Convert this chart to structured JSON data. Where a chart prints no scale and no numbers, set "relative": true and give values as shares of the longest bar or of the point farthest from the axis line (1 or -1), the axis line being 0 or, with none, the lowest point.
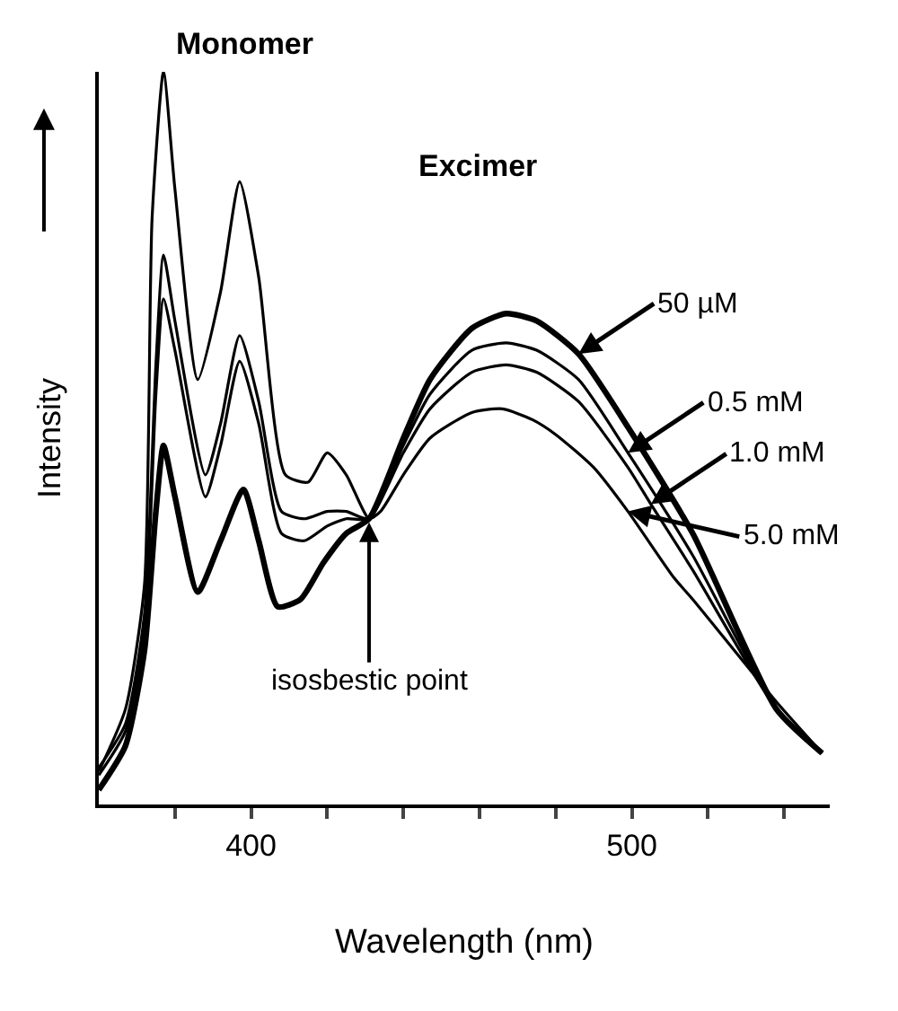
{
  "chart_data": {
    "type": "line",
    "relative": true,
    "xlabel": "Wavelength (nm)",
    "ylabel": "Intensity",
    "tick_labels": "x",
    "xlim": [
      360,
      552
    ],
    "xticks": [
      {
        "value": 380,
        "label": null
      },
      400,
      {
        "value": 420,
        "label": null
      },
      {
        "value": 440,
        "label": null
      },
      {
        "value": 460,
        "label": null
      },
      {
        "value": 480,
        "label": null
      },
      500,
      {
        "value": 520,
        "label": null
      },
      {
        "value": 540,
        "label": null
      }
    ],
    "marker": "none",
    "line_style": "solid",
    "annotations": [
      "Monomer",
      "Excimer",
      {
        "text": "isosbestic point",
        "x": 431,
        "y": 0.39
      },
      {
        "text": "50 µM",
        "x": 486,
        "y": 0.615
      },
      {
        "text": "0.5 mM",
        "x": 499,
        "y": 0.48
      },
      {
        "text": "1.0 mM",
        "x": 505,
        "y": 0.41
      },
      {
        "text": "5.0 mM",
        "x": 499,
        "y": 0.4
      }
    ],
    "series": [
      {
        "color": "#000000",
        "x": [
          360,
          367,
          372,
          375,
          377,
          380,
          386,
          392,
          398,
          402,
          407,
          413,
          419,
          425,
          431,
          440,
          447,
          458,
          467,
          475,
          486,
          499,
          516,
          538,
          550
        ],
        "values": [
          0.02,
          0.08,
          0.21,
          0.4,
          0.49,
          0.42,
          0.29,
          0.36,
          0.43,
          0.36,
          0.27,
          0.28,
          0.33,
          0.37,
          0.39,
          0.5,
          0.58,
          0.65,
          0.67,
          0.66,
          0.615,
          0.515,
          0.37,
          0.13,
          0.07
        ]
      },
      {
        "color": "#000000",
        "x": [
          360,
          367,
          372,
          375,
          377,
          380,
          388,
          392,
          397,
          402,
          408,
          414,
          420,
          425,
          431,
          440,
          447,
          458,
          467,
          475,
          486,
          499,
          516,
          538,
          550
        ],
        "values": [
          0.05,
          0.11,
          0.26,
          0.6,
          0.75,
          0.66,
          0.45,
          0.52,
          0.64,
          0.55,
          0.4,
          0.39,
          0.4,
          0.4,
          0.39,
          0.49,
          0.56,
          0.62,
          0.63,
          0.62,
          0.58,
          0.48,
          0.34,
          0.13,
          0.07
        ]
      },
      {
        "color": "#000000",
        "x": [
          360,
          367,
          372,
          375,
          377,
          380,
          388,
          392,
          397,
          402,
          408,
          414,
          420,
          425,
          431,
          440,
          447,
          458,
          467,
          475,
          486,
          499,
          505,
          516,
          538,
          550
        ],
        "values": [
          0.04,
          0.1,
          0.24,
          0.56,
          0.69,
          0.62,
          0.42,
          0.49,
          0.605,
          0.52,
          0.37,
          0.36,
          0.38,
          0.39,
          0.39,
          0.48,
          0.54,
          0.59,
          0.6,
          0.59,
          0.55,
          0.46,
          0.41,
          0.32,
          0.13,
          0.07
        ]
      },
      {
        "color": "#000000",
        "x": [
          360,
          367,
          372,
          374,
          377,
          380,
          386,
          392,
          397,
          402,
          409,
          415,
          420,
          425,
          431,
          434,
          440,
          447,
          458,
          466,
          474,
          480,
          490,
          499,
          511,
          516,
          538,
          550
        ],
        "values": [
          0.045,
          0.13,
          0.3,
          0.8,
          1.0,
          0.84,
          0.58,
          0.7,
          0.85,
          0.72,
          0.45,
          0.44,
          0.48,
          0.45,
          0.39,
          0.4,
          0.45,
          0.5,
          0.535,
          0.54,
          0.525,
          0.505,
          0.46,
          0.4,
          0.31,
          0.28,
          0.14,
          0.07
        ]
      }
    ]
  }
}
